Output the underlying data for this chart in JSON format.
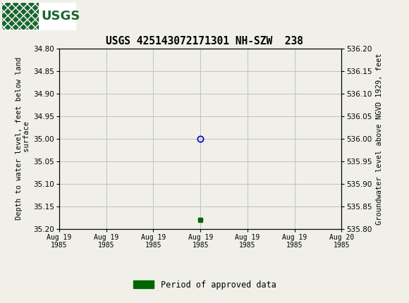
{
  "title": "USGS 425143072171301 NH-SZW  238",
  "ylabel_left": "Depth to water level, feet below land\n surface",
  "ylabel_right": "Groundwater level above NGVD 1929, feet",
  "ylim_left": [
    35.2,
    34.8
  ],
  "ylim_right": [
    535.8,
    536.2
  ],
  "yticks_left": [
    34.8,
    34.85,
    34.9,
    34.95,
    35.0,
    35.05,
    35.1,
    35.15,
    35.2
  ],
  "yticks_right": [
    536.2,
    536.15,
    536.1,
    536.05,
    536.0,
    535.95,
    535.9,
    535.85,
    535.8
  ],
  "open_circle_depth": 35.0,
  "green_square_depth": 35.18,
  "open_circle_color": "#0000cc",
  "green_square_color": "#006400",
  "background_color": "#f0f0e8",
  "header_color": "#1a6630",
  "grid_color": "#c0c0c0",
  "font_color": "#000000",
  "legend_label": "Period of approved data",
  "legend_color": "#006400",
  "xtick_labels": [
    "Aug 19\n1985",
    "Aug 19\n1985",
    "Aug 19\n1985",
    "Aug 19\n1985",
    "Aug 19\n1985",
    "Aug 19\n1985",
    "Aug 20\n1985"
  ]
}
